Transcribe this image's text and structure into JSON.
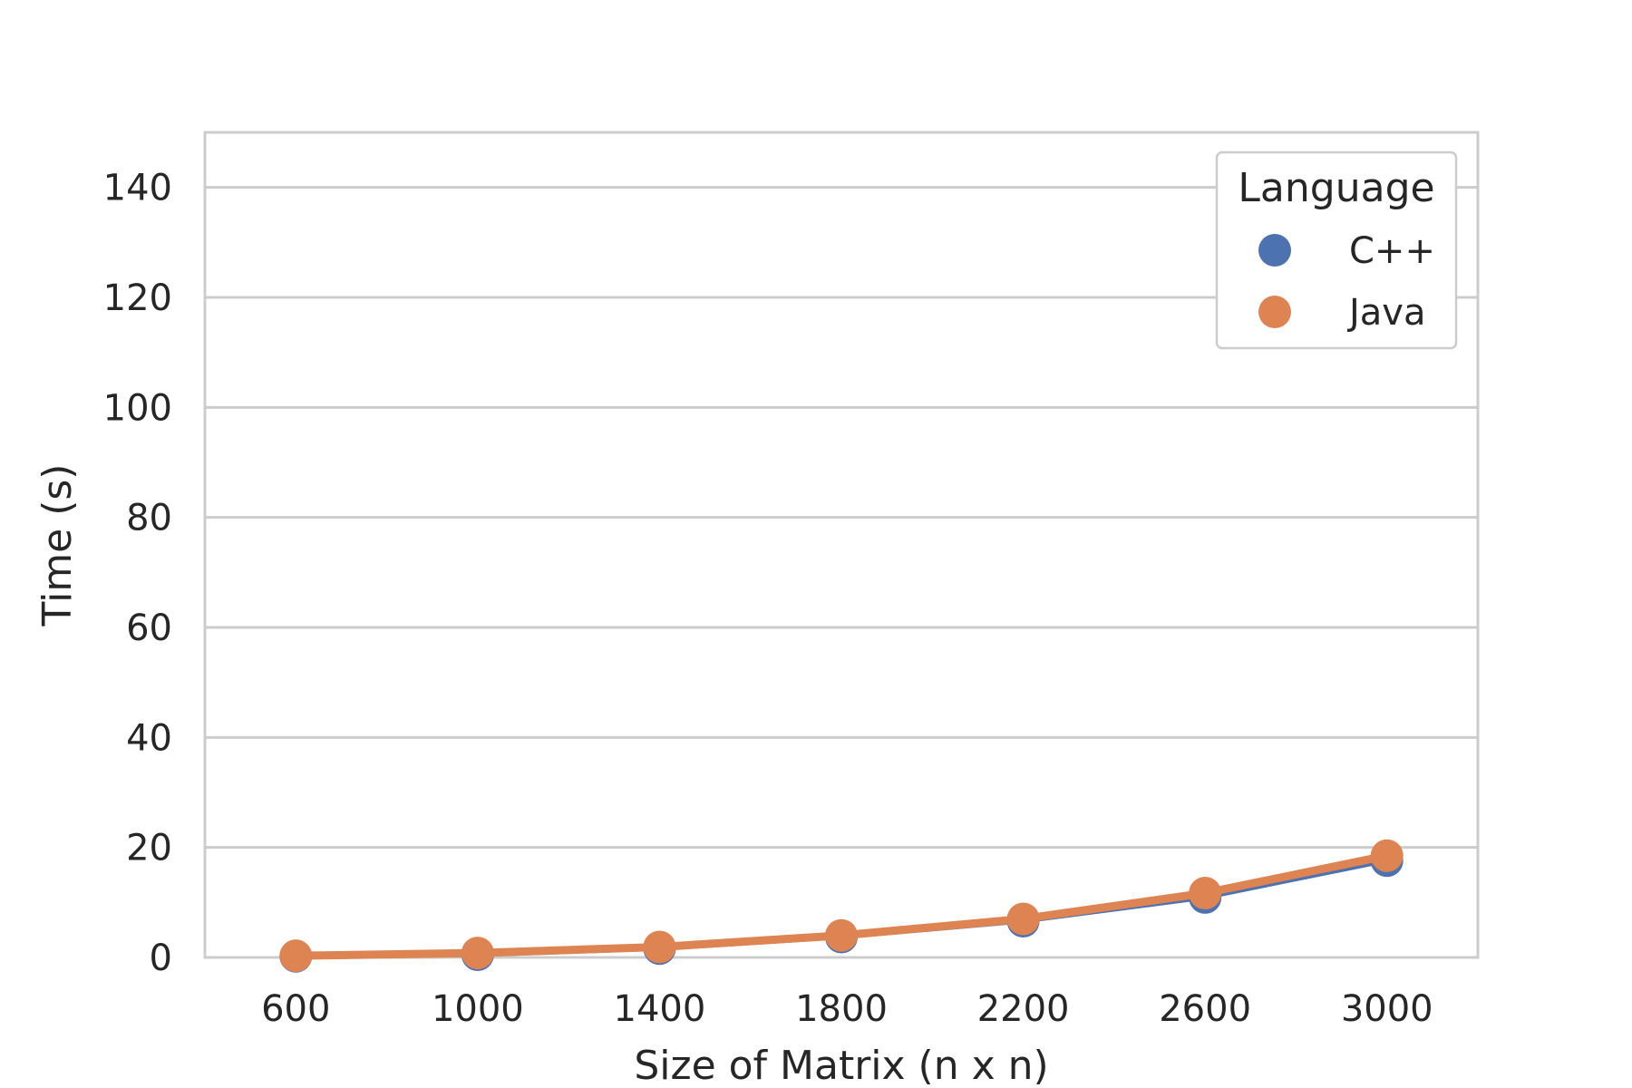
{
  "chart_data": {
    "type": "line",
    "title": "",
    "xlabel": "Size of Matrix (n x n)",
    "ylabel": "Time (s)",
    "x": [
      600,
      1000,
      1400,
      1800,
      2200,
      2600,
      3000
    ],
    "x_tick_labels": [
      "600",
      "1000",
      "1400",
      "1800",
      "2200",
      "2600",
      "3000"
    ],
    "y_ticks": [
      0,
      20,
      40,
      60,
      80,
      100,
      120,
      140
    ],
    "y_tick_labels": [
      "0",
      "20",
      "40",
      "60",
      "80",
      "100",
      "120",
      "140"
    ],
    "ylim": [
      0,
      150
    ],
    "grid": true,
    "legend": {
      "title": "Language",
      "placement": "top-right"
    },
    "series": [
      {
        "name": "C++",
        "color": "#4c72b0",
        "values": [
          0.2,
          0.5,
          1.6,
          3.7,
          6.6,
          10.9,
          17.6
        ]
      },
      {
        "name": "Java",
        "color": "#dd8452",
        "values": [
          0.3,
          0.8,
          1.9,
          4.0,
          7.0,
          11.7,
          18.5
        ]
      }
    ]
  }
}
